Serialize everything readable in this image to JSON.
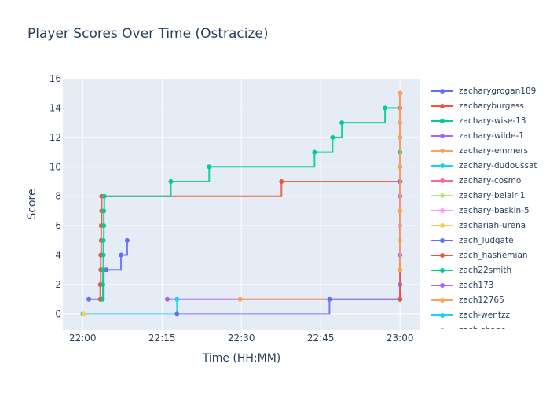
{
  "chart_data": {
    "type": "line",
    "line_shape": "step (hv)",
    "title": "Player Scores Over Time (Ostracize)",
    "xlabel": "Time (HH:MM)",
    "ylabel": "Score",
    "xlim": [
      "21:56:15",
      "23:03:50"
    ],
    "ylim": [
      -1.1,
      16
    ],
    "xticks": [
      "22:00",
      "22:15",
      "22:30",
      "22:45",
      "23:00"
    ],
    "yticks": [
      0,
      2,
      4,
      6,
      8,
      10,
      12,
      14,
      16
    ],
    "grid": true,
    "legend_position": "right",
    "plot_bg": "#e5ecf6",
    "series": [
      {
        "name": "zacharygrogan189",
        "color": "#636efa",
        "points": [
          [
            "22:01:10",
            1
          ],
          [
            "22:03:30",
            1
          ],
          [
            "22:04:00",
            3
          ],
          [
            "22:04:30",
            3
          ],
          [
            "22:07:15",
            4
          ],
          [
            "22:08:25",
            5
          ]
        ]
      },
      {
        "name": "zacharyburgess",
        "color": "#EF553B",
        "points": [
          [
            "22:03:20",
            1
          ],
          [
            "22:03:20",
            2
          ],
          [
            "22:03:25",
            3
          ],
          [
            "22:03:25",
            4
          ],
          [
            "22:03:30",
            5
          ],
          [
            "22:03:30",
            6
          ],
          [
            "22:03:35",
            7
          ],
          [
            "22:03:35",
            8
          ],
          [
            "22:37:35",
            9
          ],
          [
            "23:00:00",
            9
          ]
        ]
      },
      {
        "name": "zachary-wise-13",
        "color": "#00cc96",
        "points": [
          [
            "22:03:45",
            1
          ],
          [
            "22:03:50",
            2
          ],
          [
            "22:03:50",
            3
          ],
          [
            "22:03:55",
            4
          ],
          [
            "22:03:55",
            5
          ],
          [
            "22:04:00",
            6
          ],
          [
            "22:04:00",
            7
          ],
          [
            "22:04:05",
            8
          ],
          [
            "22:16:40",
            9
          ],
          [
            "22:23:55",
            10
          ],
          [
            "22:43:50",
            11
          ],
          [
            "22:47:15",
            12
          ],
          [
            "22:49:00",
            13
          ],
          [
            "22:57:10",
            14
          ],
          [
            "23:00:00",
            15
          ]
        ]
      },
      {
        "name": "zachary-wilde-1",
        "color": "#ab63fa",
        "points": [
          [
            "22:16:00",
            1
          ],
          [
            "23:00:00",
            1
          ],
          [
            "23:00:00",
            2
          ]
        ]
      },
      {
        "name": "zachary-emmers",
        "color": "#FFA15A",
        "points": [
          [
            "22:29:45",
            1
          ],
          [
            "23:00:00",
            3
          ],
          [
            "23:00:00",
            7
          ],
          [
            "23:00:00",
            10
          ],
          [
            "23:00:00",
            12
          ],
          [
            "23:00:00",
            13
          ],
          [
            "23:00:00",
            15
          ]
        ]
      },
      {
        "name": "zachary-dudoussat",
        "color": "#19d3f3",
        "points": [
          [
            "22:00:00",
            0
          ],
          [
            "22:17:50",
            1
          ]
        ]
      },
      {
        "name": "zachary-cosmo",
        "color": "#FF6692",
        "points": [
          [
            "23:00:00",
            14
          ]
        ]
      },
      {
        "name": "zachary-belair-1",
        "color": "#B6E880",
        "points": [
          [
            "23:00:00",
            5
          ]
        ]
      },
      {
        "name": "zachary-baskin-5",
        "color": "#FF97FF",
        "points": [
          [
            "23:00:00",
            6
          ]
        ]
      },
      {
        "name": "zachariah-urena",
        "color": "#FECB52",
        "points": [
          [
            "22:00:10",
            0
          ]
        ]
      },
      {
        "name": "zach_ludgate",
        "color": "#636efa",
        "points": [
          [
            "22:17:50",
            0
          ],
          [
            "22:46:40",
            1
          ],
          [
            "23:00:00",
            1
          ],
          [
            "23:00:00",
            9
          ]
        ]
      },
      {
        "name": "zach_hashemian",
        "color": "#EF553B",
        "points": [
          [
            "23:00:00",
            1
          ],
          [
            "23:00:00",
            15
          ]
        ]
      },
      {
        "name": "zach22smith",
        "color": "#00cc96",
        "points": [
          [
            "23:00:00",
            11
          ]
        ]
      },
      {
        "name": "zach173",
        "color": "#ab63fa",
        "points": [
          [
            "23:00:00",
            4
          ],
          [
            "23:00:00",
            8
          ]
        ]
      },
      {
        "name": "zach12765",
        "color": "#FFA15A",
        "points": [
          [
            "23:00:00",
            3
          ],
          [
            "23:00:00",
            7
          ],
          [
            "23:00:00",
            10
          ],
          [
            "23:00:00",
            12
          ],
          [
            "23:00:00",
            13
          ],
          [
            "23:00:00",
            15
          ]
        ]
      },
      {
        "name": "zach-wentzz",
        "color": "#19d3f3",
        "points": []
      },
      {
        "name": "zach-shane",
        "color": "#FF6692",
        "points": []
      }
    ]
  }
}
